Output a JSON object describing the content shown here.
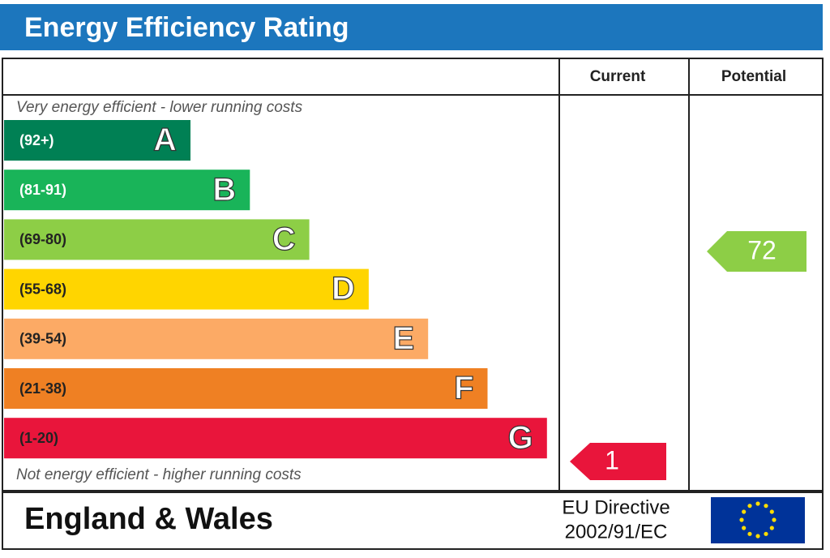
{
  "title": "Energy Efficiency Rating",
  "columns": [
    "Current",
    "Potential"
  ],
  "top_note": "Very energy efficient - lower running costs",
  "bottom_note": "Not energy efficient - higher running costs",
  "bands": [
    {
      "range": "(92+)",
      "letter": "A",
      "color": "#008054"
    },
    {
      "range": "(81-91)",
      "letter": "B",
      "color": "#19b459"
    },
    {
      "range": "(69-80)",
      "letter": "C",
      "color": "#8dce46"
    },
    {
      "range": "(55-68)",
      "letter": "D",
      "color": "#ffd500"
    },
    {
      "range": "(39-54)",
      "letter": "E",
      "color": "#fcaa65"
    },
    {
      "range": "(21-38)",
      "letter": "F",
      "color": "#ef8023"
    },
    {
      "range": "(1-20)",
      "letter": "G",
      "color": "#e9153b"
    }
  ],
  "current": 1,
  "potential": 72,
  "footer": {
    "region": "England & Wales",
    "directive": [
      "EU Directive",
      "2002/91/EC"
    ]
  }
}
